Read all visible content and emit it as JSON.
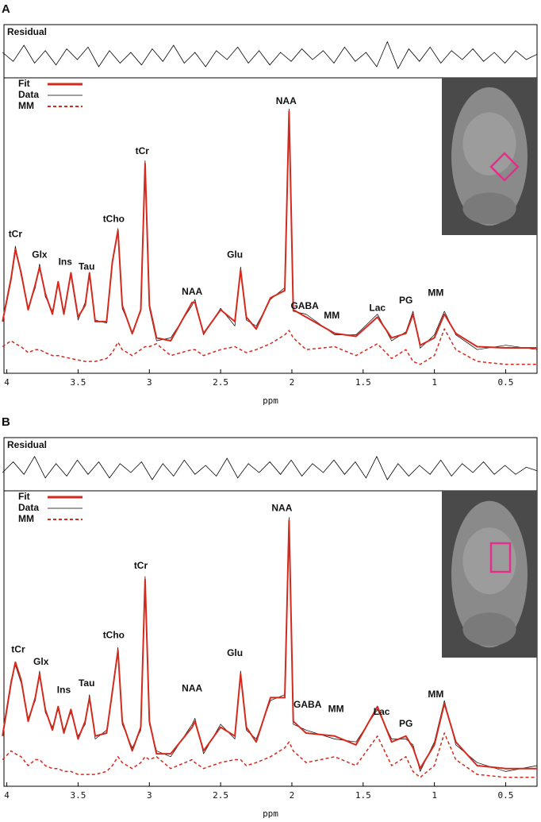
{
  "chart_data": [
    {
      "type": "line",
      "panel": "A",
      "xlabel": "ppm",
      "xlim": [
        4.02,
        0.28
      ],
      "ylim": [
        0,
        100
      ],
      "xticks": [
        4,
        3.5,
        3,
        2.5,
        2,
        1.5,
        1,
        0.5
      ],
      "legend": "upper left",
      "x": [
        4.03,
        3.97,
        3.94,
        3.9,
        3.85,
        3.8,
        3.77,
        3.73,
        3.68,
        3.64,
        3.6,
        3.55,
        3.5,
        3.45,
        3.42,
        3.38,
        3.3,
        3.26,
        3.22,
        3.19,
        3.12,
        3.06,
        3.03,
        3.0,
        2.95,
        2.85,
        2.7,
        2.68,
        2.62,
        2.5,
        2.4,
        2.36,
        2.32,
        2.25,
        2.15,
        2.05,
        2.02,
        1.99,
        1.9,
        1.7,
        1.55,
        1.4,
        1.3,
        1.2,
        1.15,
        1.1,
        1.0,
        0.93,
        0.85,
        0.7,
        0.5,
        0.28
      ],
      "series": [
        {
          "name": "Fit",
          "color": "#d42a1e",
          "style": "solid",
          "values": [
            17.5,
            32,
            42,
            34,
            21.5,
            30,
            36,
            27,
            20,
            31,
            20,
            34,
            19,
            23,
            34,
            17.5,
            17.5,
            37.6,
            48.4,
            23,
            13.4,
            21.5,
            71,
            23,
            12,
            11,
            24,
            24,
            13.5,
            21.5,
            17.5,
            35,
            19,
            15,
            25.5,
            28,
            88.7,
            21.5,
            19,
            13.5,
            12.5,
            19,
            12,
            13.5,
            20,
            9.5,
            12,
            20,
            13.5,
            9,
            8.6,
            8.6
          ]
        },
        {
          "name": "Data",
          "color": "#000000",
          "style": "thin",
          "values": [
            18,
            33,
            43,
            33,
            22,
            29,
            37,
            26,
            21,
            30,
            21,
            33,
            18,
            24,
            33,
            18,
            17,
            38,
            49,
            22,
            14,
            21,
            72,
            22,
            11,
            12,
            23,
            25,
            13,
            22,
            16,
            36,
            18,
            16,
            25,
            29,
            89.5,
            21,
            20,
            13,
            13,
            20,
            11,
            14,
            21,
            8.5,
            13,
            21,
            13,
            8,
            9.5,
            8
          ]
        },
        {
          "name": "MM",
          "color": "#d42a1e",
          "style": "dashed",
          "values": [
            9,
            11,
            10,
            9,
            7,
            8,
            8,
            7,
            6,
            6,
            5.5,
            5,
            4.5,
            4,
            4,
            4,
            5,
            7,
            10.5,
            8,
            6,
            8,
            9,
            9,
            10,
            6,
            8,
            8,
            6,
            8,
            9,
            8,
            7,
            8,
            10,
            13,
            14.5,
            12,
            8,
            9,
            6,
            10,
            5,
            8,
            4,
            3,
            6,
            15,
            8,
            4,
            3,
            3
          ]
        }
      ],
      "residual": {
        "name": "Residual",
        "color": "#000000",
        "ylim": [
          -10,
          10
        ],
        "x": [
          4.03,
          3.955,
          3.88,
          3.805,
          3.73,
          3.655,
          3.58,
          3.505,
          3.43,
          3.355,
          3.28,
          3.205,
          3.13,
          3.055,
          2.98,
          2.905,
          2.83,
          2.755,
          2.68,
          2.605,
          2.53,
          2.455,
          2.38,
          2.305,
          2.23,
          2.155,
          2.08,
          2.005,
          1.93,
          1.855,
          1.78,
          1.705,
          1.63,
          1.555,
          1.48,
          1.405,
          1.33,
          1.255,
          1.18,
          1.105,
          1.03,
          0.955,
          0.88,
          0.805,
          0.73,
          0.655,
          0.58,
          0.505,
          0.43,
          0.355,
          0.28
        ],
        "values": [
          2,
          -3,
          6,
          -4,
          3,
          -5,
          4,
          -2,
          5,
          -6,
          3,
          -4,
          2,
          -5,
          4,
          -3,
          6,
          -4,
          2,
          -6,
          3,
          -2,
          5,
          -4,
          3,
          -5,
          2,
          -3,
          4,
          -2,
          3,
          -4,
          5,
          -3,
          2,
          -6,
          8,
          -7,
          4,
          -3,
          5,
          -4,
          3,
          -2,
          4,
          -3,
          2,
          -4,
          3,
          -2,
          1
        ]
      },
      "annotations": [
        {
          "text": "tCr",
          "x": 3.94,
          "y": 47
        },
        {
          "text": "Glx",
          "x": 3.77,
          "y": 40
        },
        {
          "text": "Ins",
          "x": 3.59,
          "y": 37.6
        },
        {
          "text": "Tau",
          "x": 3.44,
          "y": 36
        },
        {
          "text": "tCho",
          "x": 3.25,
          "y": 52
        },
        {
          "text": "tCr",
          "x": 3.05,
          "y": 75
        },
        {
          "text": "NAA",
          "x": 2.7,
          "y": 27.4
        },
        {
          "text": "Glu",
          "x": 2.4,
          "y": 40
        },
        {
          "text": "NAA",
          "x": 2.04,
          "y": 92
        },
        {
          "text": "GABA",
          "x": 1.91,
          "y": 22.6
        },
        {
          "text": "MM",
          "x": 1.72,
          "y": 19.4
        },
        {
          "text": "Lac",
          "x": 1.4,
          "y": 22
        },
        {
          "text": "PG",
          "x": 1.2,
          "y": 24.5
        },
        {
          "text": "MM",
          "x": 0.99,
          "y": 27
        }
      ]
    },
    {
      "type": "line",
      "panel": "B",
      "xlabel": "ppm",
      "xlim": [
        4.02,
        0.28
      ],
      "ylim": [
        0,
        100
      ],
      "xticks": [
        4,
        3.5,
        3,
        2.5,
        2,
        1.5,
        1,
        0.5
      ],
      "legend": "upper left",
      "x": [
        4.03,
        3.97,
        3.94,
        3.9,
        3.85,
        3.8,
        3.77,
        3.73,
        3.68,
        3.64,
        3.6,
        3.55,
        3.5,
        3.45,
        3.42,
        3.38,
        3.3,
        3.26,
        3.22,
        3.19,
        3.12,
        3.06,
        3.03,
        3.0,
        2.95,
        2.85,
        2.7,
        2.68,
        2.62,
        2.5,
        2.4,
        2.36,
        2.32,
        2.25,
        2.15,
        2.05,
        2.02,
        1.99,
        1.9,
        1.7,
        1.55,
        1.4,
        1.3,
        1.2,
        1.15,
        1.1,
        1.0,
        0.93,
        0.85,
        0.7,
        0.5,
        0.28
      ],
      "series": [
        {
          "name": "Fit",
          "color": "#d42a1e",
          "style": "solid",
          "values": [
            17,
            35,
            42,
            36,
            22,
            30,
            38,
            26,
            19,
            27,
            18,
            26,
            16,
            22,
            30,
            17,
            18,
            32,
            46,
            22,
            12,
            20,
            70,
            22,
            11,
            11,
            20,
            22,
            12,
            20,
            17,
            38,
            20,
            15,
            30,
            30,
            90,
            22,
            18,
            17,
            14,
            27,
            15,
            17,
            13,
            6,
            14,
            28,
            15,
            7,
            6,
            6
          ]
        },
        {
          "name": "Data",
          "color": "#000000",
          "style": "thin",
          "values": [
            18,
            36,
            41,
            35,
            23,
            29,
            39,
            25,
            20,
            26,
            19,
            25,
            17,
            21,
            31,
            16,
            19,
            31,
            47,
            21,
            13,
            19,
            71,
            21,
            12,
            10,
            21,
            23,
            11,
            21,
            16,
            39,
            19,
            16,
            29,
            31,
            91,
            21,
            19,
            16,
            15,
            26,
            16,
            16,
            14,
            5,
            15,
            29,
            14,
            8,
            5,
            7
          ]
        },
        {
          "name": "MM",
          "color": "#d42a1e",
          "style": "dashed",
          "values": [
            9,
            12,
            11,
            10,
            7,
            9,
            9,
            7,
            6,
            6,
            5,
            5,
            4,
            4,
            4,
            4,
            5,
            7,
            10,
            8,
            6,
            8,
            10,
            9,
            10,
            6,
            9,
            8,
            6,
            8,
            9,
            9,
            7,
            8,
            10,
            13,
            15,
            12,
            8,
            10,
            7,
            17,
            7,
            10,
            5,
            3,
            7,
            18,
            9,
            4,
            3,
            3
          ]
        }
      ],
      "residual": {
        "name": "Residual",
        "color": "#000000",
        "ylim": [
          -10,
          10
        ],
        "x": [
          4.03,
          3.955,
          3.88,
          3.805,
          3.73,
          3.655,
          3.58,
          3.505,
          3.43,
          3.355,
          3.28,
          3.205,
          3.13,
          3.055,
          2.98,
          2.905,
          2.83,
          2.755,
          2.68,
          2.605,
          2.53,
          2.455,
          2.38,
          2.305,
          2.23,
          2.155,
          2.08,
          2.005,
          1.93,
          1.855,
          1.78,
          1.705,
          1.63,
          1.555,
          1.48,
          1.405,
          1.33,
          1.255,
          1.18,
          1.105,
          1.03,
          0.955,
          0.88,
          0.805,
          0.73,
          0.655,
          0.58,
          0.505,
          0.43,
          0.355,
          0.28
        ],
        "values": [
          -2,
          4,
          -3,
          7,
          -5,
          3,
          -4,
          5,
          -3,
          4,
          -5,
          3,
          -2,
          4,
          -6,
          3,
          -4,
          5,
          -3,
          2,
          -4,
          6,
          -5,
          3,
          -2,
          4,
          -3,
          5,
          -4,
          3,
          -2,
          5,
          -3,
          4,
          -5,
          7,
          -6,
          3,
          -4,
          2,
          -3,
          5,
          -4,
          3,
          -2,
          4,
          -3,
          2,
          -3,
          1,
          -1
        ]
      },
      "annotations": [
        {
          "text": "tCr",
          "x": 3.92,
          "y": 46.2
        },
        {
          "text": "Glx",
          "x": 3.76,
          "y": 42
        },
        {
          "text": "Ins",
          "x": 3.6,
          "y": 32.5
        },
        {
          "text": "Tau",
          "x": 3.44,
          "y": 34.7
        },
        {
          "text": "tCho",
          "x": 3.25,
          "y": 51
        },
        {
          "text": "tCr",
          "x": 3.06,
          "y": 74.5
        },
        {
          "text": "NAA",
          "x": 2.7,
          "y": 33
        },
        {
          "text": "Glu",
          "x": 2.4,
          "y": 45
        },
        {
          "text": "NAA",
          "x": 2.07,
          "y": 94
        },
        {
          "text": "GABA",
          "x": 1.89,
          "y": 27.4
        },
        {
          "text": "MM",
          "x": 1.69,
          "y": 26
        },
        {
          "text": "Lac",
          "x": 1.37,
          "y": 25
        },
        {
          "text": "PG",
          "x": 1.2,
          "y": 21
        },
        {
          "text": "MM",
          "x": 0.99,
          "y": 31
        }
      ]
    }
  ]
}
